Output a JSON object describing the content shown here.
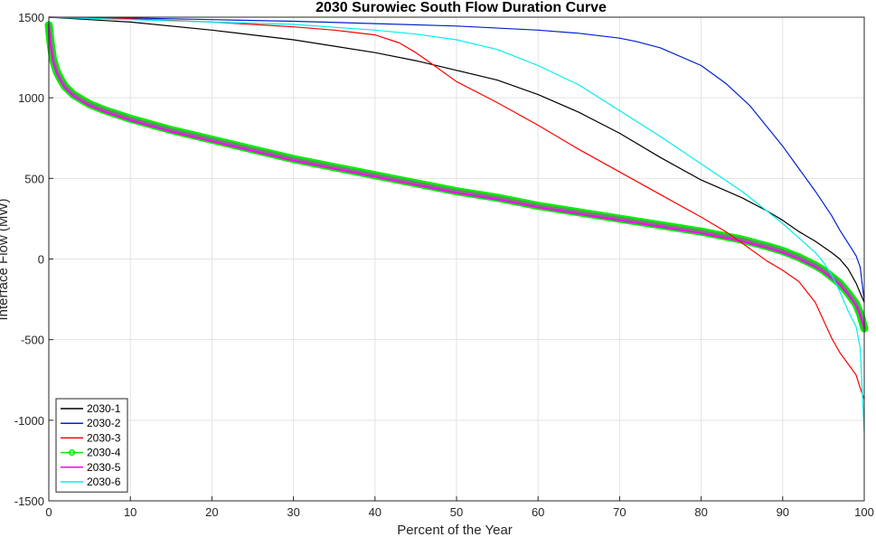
{
  "chart_data": {
    "type": "line",
    "title": "2030 Surowiec South Flow Duration Curve",
    "xlabel": "Percent of the Year",
    "ylabel": "Interface Flow (MW)",
    "xlim": [
      0,
      100
    ],
    "ylim": [
      -1500,
      1500
    ],
    "xticks": [
      0,
      10,
      20,
      30,
      40,
      50,
      60,
      70,
      80,
      90,
      100
    ],
    "yticks": [
      -1500,
      -1000,
      -500,
      0,
      500,
      1000,
      1500
    ],
    "grid": true,
    "legend_location": "bottom-left",
    "series": [
      {
        "name": "2030-1",
        "color": "#000000",
        "x": [
          0,
          10,
          20,
          30,
          40,
          45,
          50,
          55,
          60,
          65,
          70,
          75,
          80,
          85,
          88,
          90,
          92,
          94,
          96,
          97,
          98,
          99,
          100
        ],
        "y": [
          1500,
          1470,
          1420,
          1360,
          1280,
          1230,
          1170,
          1110,
          1020,
          910,
          780,
          630,
          490,
          380,
          300,
          240,
          170,
          110,
          40,
          0,
          -60,
          -150,
          -270
        ]
      },
      {
        "name": "2030-2",
        "color": "#0022cc",
        "x": [
          0,
          10,
          20,
          30,
          40,
          50,
          60,
          65,
          70,
          72,
          75,
          80,
          83,
          86,
          90,
          92,
          94,
          96,
          97,
          98,
          99,
          99.5,
          100
        ],
        "y": [
          1500,
          1495,
          1485,
          1475,
          1460,
          1445,
          1420,
          1400,
          1370,
          1350,
          1310,
          1200,
          1090,
          950,
          700,
          560,
          420,
          270,
          180,
          100,
          20,
          -50,
          -260
        ]
      },
      {
        "name": "2030-3",
        "color": "#ff0000",
        "x": [
          0,
          5,
          10,
          15,
          20,
          25,
          30,
          35,
          40,
          43,
          45,
          47,
          50,
          55,
          60,
          65,
          70,
          75,
          80,
          83,
          85,
          88,
          90,
          92,
          94,
          95,
          96,
          97,
          98,
          99,
          99.5,
          100
        ],
        "y": [
          1500,
          1497,
          1490,
          1480,
          1470,
          1455,
          1440,
          1420,
          1390,
          1340,
          1280,
          1210,
          1100,
          970,
          830,
          680,
          540,
          400,
          260,
          170,
          100,
          -10,
          -70,
          -140,
          -270,
          -380,
          -490,
          -580,
          -650,
          -720,
          -800,
          -870
        ]
      },
      {
        "name": "2030-4",
        "color": "#00ee00",
        "marker": "circle",
        "x": [
          0,
          0.2,
          0.5,
          1,
          1.5,
          2,
          3,
          4,
          5,
          7,
          10,
          15,
          20,
          25,
          30,
          35,
          40,
          45,
          50,
          55,
          60,
          65,
          70,
          75,
          80,
          85,
          88,
          90,
          92,
          94,
          95,
          96,
          97,
          98,
          99,
          99.5,
          100
        ],
        "y": [
          1450,
          1350,
          1240,
          1160,
          1110,
          1070,
          1020,
          990,
          960,
          920,
          870,
          800,
          740,
          680,
          620,
          570,
          520,
          470,
          420,
          380,
          330,
          290,
          250,
          210,
          170,
          120,
          80,
          50,
          10,
          -40,
          -70,
          -110,
          -150,
          -210,
          -280,
          -340,
          -430
        ]
      },
      {
        "name": "2030-5",
        "color": "#ff00ff",
        "x": [
          0,
          0.2,
          0.5,
          1,
          1.5,
          2,
          3,
          4,
          5,
          7,
          10,
          15,
          20,
          25,
          30,
          35,
          40,
          45,
          50,
          55,
          60,
          65,
          70,
          75,
          80,
          85,
          88,
          90,
          92,
          94,
          95,
          96,
          97,
          98,
          99,
          99.5,
          100
        ],
        "y": [
          1440,
          1340,
          1230,
          1150,
          1100,
          1060,
          1010,
          980,
          950,
          910,
          860,
          790,
          730,
          670,
          610,
          560,
          510,
          460,
          410,
          370,
          320,
          280,
          240,
          200,
          160,
          110,
          70,
          40,
          0,
          -50,
          -80,
          -120,
          -160,
          -220,
          -290,
          -350,
          -420
        ]
      },
      {
        "name": "2030-6",
        "color": "#00eeee",
        "x": [
          0,
          10,
          20,
          30,
          40,
          45,
          50,
          55,
          60,
          65,
          70,
          75,
          80,
          85,
          88,
          90,
          92,
          94,
          95,
          96,
          97,
          98,
          99,
          99.5,
          100
        ],
        "y": [
          1500,
          1485,
          1470,
          1455,
          1420,
          1395,
          1360,
          1300,
          1200,
          1080,
          920,
          760,
          590,
          420,
          300,
          220,
          130,
          40,
          -20,
          -100,
          -200,
          -320,
          -420,
          -550,
          -1080
        ]
      }
    ]
  }
}
